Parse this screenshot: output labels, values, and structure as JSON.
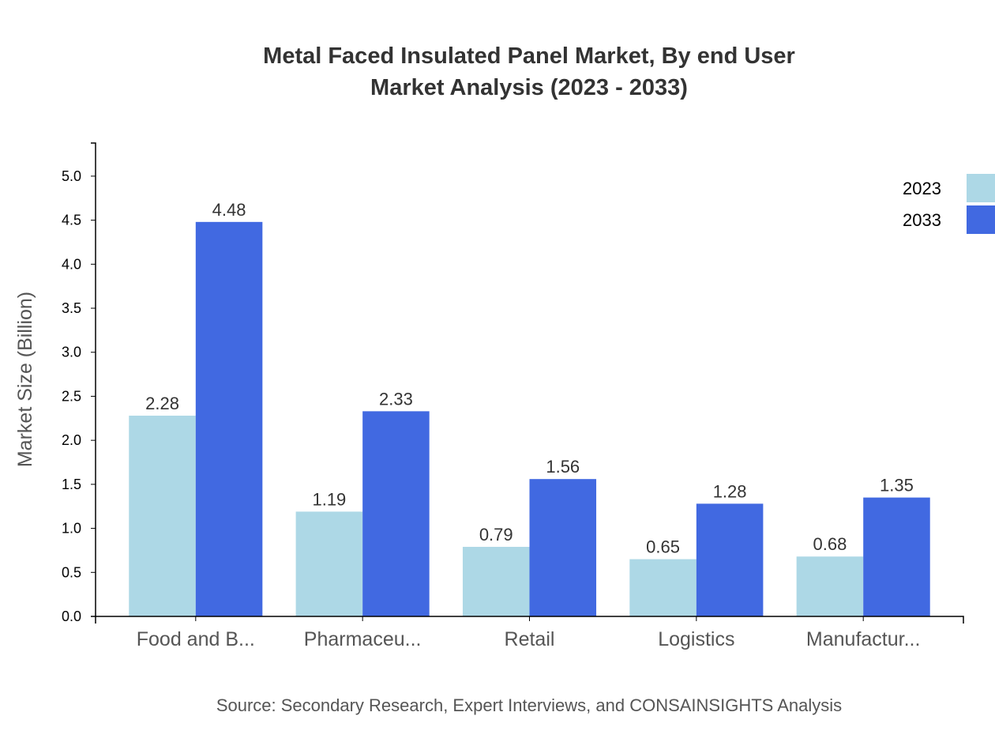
{
  "chart_data": {
    "type": "bar",
    "title": "Metal Faced Insulated Panel Market, By end User",
    "subtitle": "Market Analysis (2023 - 2033)",
    "xlabel": "",
    "ylabel": "Market Size (Billion)",
    "categories": [
      "Food and B...",
      "Pharmaceu...",
      "Retail",
      "Logistics",
      "Manufactur..."
    ],
    "series": [
      {
        "name": "2023",
        "color": "#add8e6",
        "values": [
          2.28,
          1.19,
          0.79,
          0.65,
          0.68
        ]
      },
      {
        "name": "2033",
        "color": "#4169e1",
        "values": [
          4.48,
          2.33,
          1.56,
          1.28,
          1.35
        ]
      }
    ],
    "ylim": [
      0,
      5.376
    ],
    "yticks": [
      "0.0",
      "0.5",
      "1.0",
      "1.5",
      "2.0",
      "2.5",
      "3.0",
      "3.5",
      "4.0",
      "4.5",
      "5.0"
    ],
    "grid": false,
    "legend_position": "top-right",
    "source": "Source: Secondary Research, Expert Interviews, and CONSAINSIGHTS Analysis"
  }
}
